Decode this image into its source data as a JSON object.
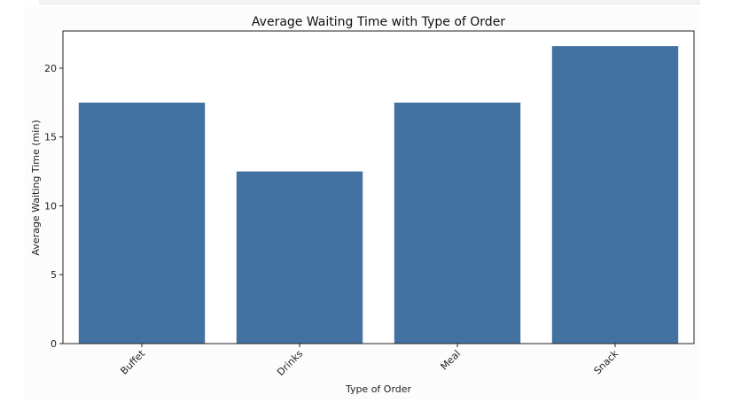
{
  "chart_data": {
    "type": "bar",
    "title": "Average Waiting Time with Type of Order",
    "xlabel": "Type of Order",
    "ylabel": "Average Waiting Time (min)",
    "categories": [
      "Buffet",
      "Drinks",
      "Meal",
      "Snack"
    ],
    "values": [
      17.5,
      12.5,
      17.5,
      21.6
    ],
    "ylim": [
      0,
      22.7
    ],
    "yticks": [
      0,
      5,
      10,
      15,
      20
    ],
    "grid": false,
    "legend": "none",
    "bar_color": "#4172a1"
  }
}
